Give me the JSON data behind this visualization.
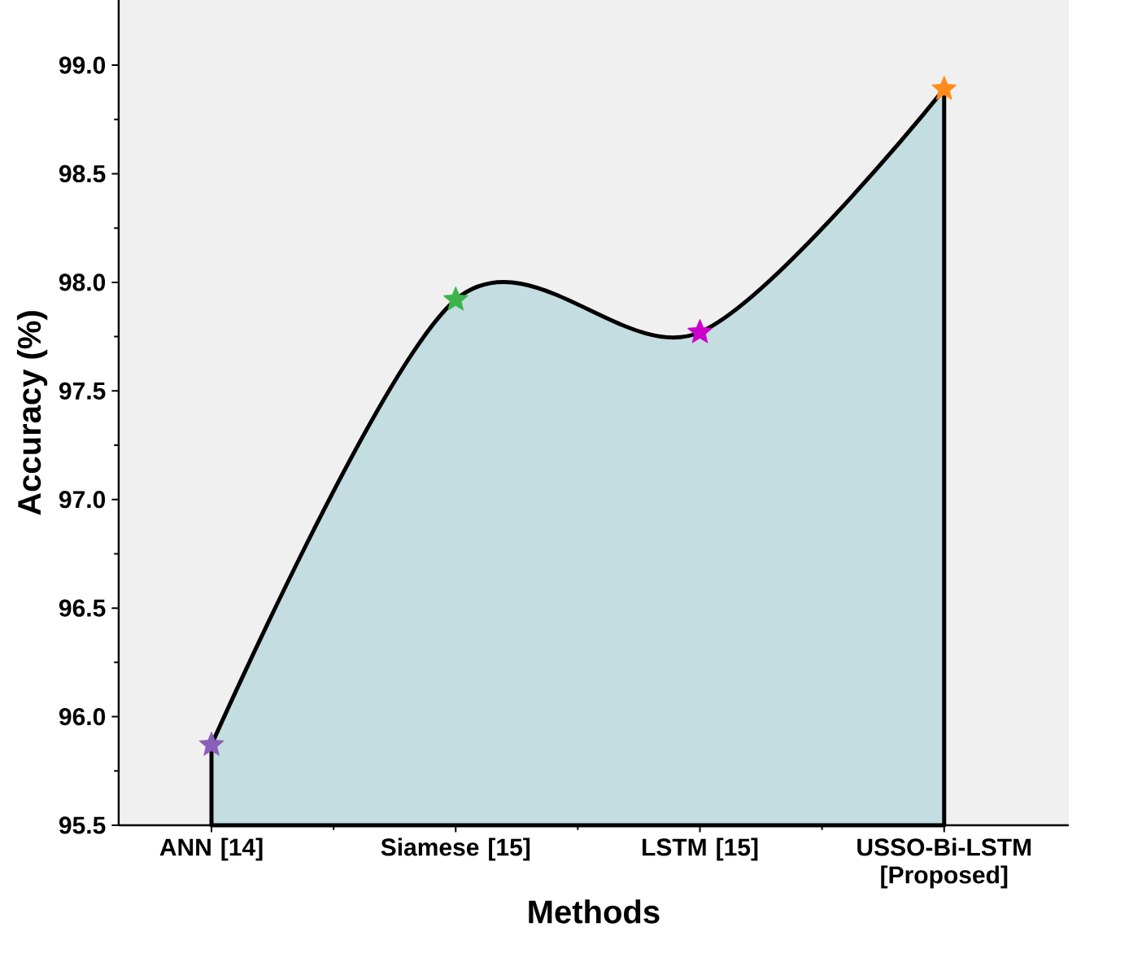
{
  "chart_data": {
    "type": "area",
    "xlabel": "Methods",
    "ylabel": "Accuracy (%)",
    "categories": [
      "ANN [14]",
      "Siamese [15]",
      "LSTM [15]",
      "USSO-Bi-LSTM [Proposed]"
    ],
    "values": [
      95.87,
      97.92,
      97.77,
      98.89
    ],
    "color": "#c3dde0",
    "colors": [
      "#8a5fb8",
      "#3cb44b",
      "#cc00cc",
      "#ff8c1a"
    ],
    "marker": "star",
    "ylim": [
      95.5,
      99.3
    ],
    "yticks": [
      {
        "value": 95.5,
        "label": "95.5"
      },
      {
        "value": 96,
        "label": "96.0"
      },
      {
        "value": 96.5,
        "label": "96.5"
      },
      {
        "value": 97,
        "label": "97.0"
      },
      {
        "value": 97.5,
        "label": "97.5"
      },
      {
        "value": 98,
        "label": "98.0"
      },
      {
        "value": 98.5,
        "label": "98.5"
      },
      {
        "value": 99,
        "label": "99.0"
      }
    ],
    "grid": false
  }
}
